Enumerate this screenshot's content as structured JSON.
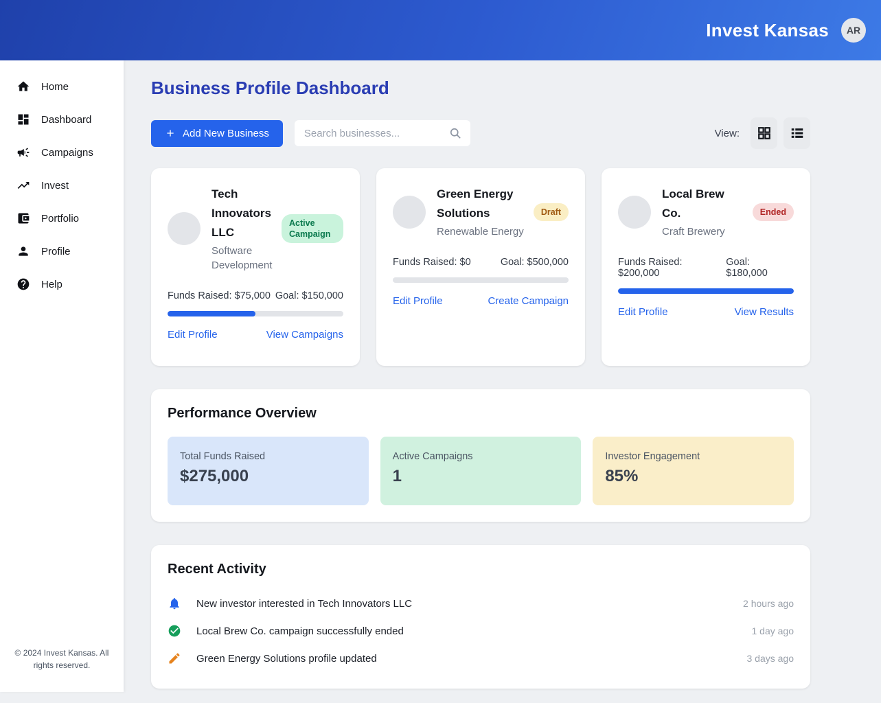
{
  "header": {
    "brand": "Invest Kansas",
    "avatar_initials": "AR"
  },
  "sidebar": {
    "items": [
      {
        "label": "Home",
        "icon": "home-icon"
      },
      {
        "label": "Dashboard",
        "icon": "dashboard-icon"
      },
      {
        "label": "Campaigns",
        "icon": "megaphone-icon"
      },
      {
        "label": "Invest",
        "icon": "trending-up-icon"
      },
      {
        "label": "Portfolio",
        "icon": "wallet-icon"
      },
      {
        "label": "Profile",
        "icon": "person-icon"
      },
      {
        "label": "Help",
        "icon": "help-icon"
      }
    ],
    "footer": "© 2024 Invest Kansas. All rights reserved."
  },
  "main": {
    "title": "Business Profile Dashboard",
    "toolbar": {
      "add_button": "Add New Business",
      "search_placeholder": "Search businesses...",
      "view_label": "View:"
    },
    "businesses": [
      {
        "name": "Tech Innovators LLC",
        "category": "Software Development",
        "status": "Active Campaign",
        "funds": "Funds Raised: $75,000",
        "goal": "Goal: $150,000",
        "progress_pct": 50,
        "link_left": "Edit Profile",
        "link_right": "View Campaigns"
      },
      {
        "name": "Green Energy Solutions",
        "category": "Renewable Energy",
        "status": "Draft",
        "funds": "Funds Raised: $0",
        "goal": "Goal: $500,000",
        "progress_pct": 0,
        "link_left": "Edit Profile",
        "link_right": "Create Campaign"
      },
      {
        "name": "Local Brew Co.",
        "category": "Craft Brewery",
        "status": "Ended",
        "funds": "Funds Raised: $200,000",
        "goal": "Goal: $180,000",
        "progress_pct": 100,
        "link_left": "Edit Profile",
        "link_right": "View Results"
      }
    ],
    "performance": {
      "title": "Performance Overview",
      "stats": [
        {
          "label": "Total Funds Raised",
          "value": "$275,000",
          "bg": "#d9e6fa"
        },
        {
          "label": "Active Campaigns",
          "value": "1",
          "bg": "#d0f1df"
        },
        {
          "label": "Investor Engagement",
          "value": "85%",
          "bg": "#faeec9"
        }
      ]
    },
    "activity": {
      "title": "Recent Activity",
      "items": [
        {
          "icon": "bell-icon",
          "text": "New investor interested in Tech Innovators LLC",
          "time": "2 hours ago"
        },
        {
          "icon": "check-circle-icon",
          "text": "Local Brew Co. campaign successfully ended",
          "time": "1 day ago"
        },
        {
          "icon": "pencil-icon",
          "text": "Green Energy Solutions profile updated",
          "time": "3 days ago"
        }
      ]
    }
  },
  "colors": {
    "accent_blue": "#2563eb",
    "header_gradient_start": "#1f41ab",
    "header_gradient_end": "#3d7ae6",
    "title_blue": "#2a3db3",
    "badge_active_bg": "#c9f3dc",
    "badge_active_text": "#0b7a4e",
    "badge_draft_bg": "#faeec4",
    "badge_draft_text": "#a05a12",
    "badge_ended_bg": "#f8dada",
    "badge_ended_text": "#b02525",
    "stat_blue_bg": "#d9e6fa",
    "stat_green_bg": "#d0f1df",
    "stat_yellow_bg": "#faeec9",
    "bell_icon": "#2563eb",
    "check_icon": "#169e5b",
    "pencil_icon": "#e6831e"
  }
}
